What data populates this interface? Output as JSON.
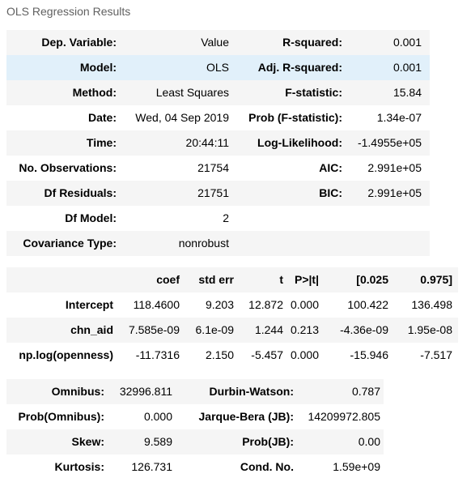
{
  "caption": "OLS Regression Results",
  "summary": [
    {
      "k1": "Dep. Variable:",
      "v1": "Value",
      "k2": "R-squared:",
      "v2": "0.001"
    },
    {
      "k1": "Model:",
      "v1": "OLS",
      "k2": "Adj. R-squared:",
      "v2": "0.001"
    },
    {
      "k1": "Method:",
      "v1": "Least Squares",
      "k2": "F-statistic:",
      "v2": "15.84"
    },
    {
      "k1": "Date:",
      "v1": "Wed, 04 Sep 2019",
      "k2": "Prob (F-statistic):",
      "v2": "1.34e-07"
    },
    {
      "k1": "Time:",
      "v1": "20:44:11",
      "k2": "Log-Likelihood:",
      "v2": "-1.4955e+05"
    },
    {
      "k1": "No. Observations:",
      "v1": "21754",
      "k2": "AIC:",
      "v2": "2.991e+05"
    },
    {
      "k1": "Df Residuals:",
      "v1": "21751",
      "k2": "BIC:",
      "v2": "2.991e+05"
    },
    {
      "k1": "Df Model:",
      "v1": "2",
      "k2": "",
      "v2": ""
    },
    {
      "k1": "Covariance Type:",
      "v1": "nonrobust",
      "k2": "",
      "v2": ""
    }
  ],
  "coef_table": {
    "headers": [
      "",
      "coef",
      "std err",
      "t",
      "P>|t|",
      "[0.025",
      "0.975]"
    ],
    "rows": [
      [
        "Intercept",
        "118.4600",
        "9.203",
        "12.872",
        "0.000",
        "100.422",
        "136.498"
      ],
      [
        "chn_aid",
        "7.585e-09",
        "6.1e-09",
        "1.244",
        "0.213",
        "-4.36e-09",
        "1.95e-08"
      ],
      [
        "np.log(openness)",
        "-11.7316",
        "2.150",
        "-5.457",
        "0.000",
        "-15.946",
        "-7.517"
      ]
    ]
  },
  "diagnostics": [
    {
      "k1": "Omnibus:",
      "v1": "32996.811",
      "k2": "Durbin-Watson:",
      "v2": "0.787"
    },
    {
      "k1": "Prob(Omnibus):",
      "v1": "0.000",
      "k2": "Jarque-Bera (JB):",
      "v2": "14209972.805"
    },
    {
      "k1": "Skew:",
      "v1": "9.589",
      "k2": "Prob(JB):",
      "v2": "0.00"
    },
    {
      "k1": "Kurtosis:",
      "v1": "126.731",
      "k2": "Cond. No.",
      "v2": "1.59e+09"
    }
  ],
  "colors": {
    "stripe": "#f5f5f5",
    "hover": "#e1f0fa",
    "caption": "#616161"
  }
}
